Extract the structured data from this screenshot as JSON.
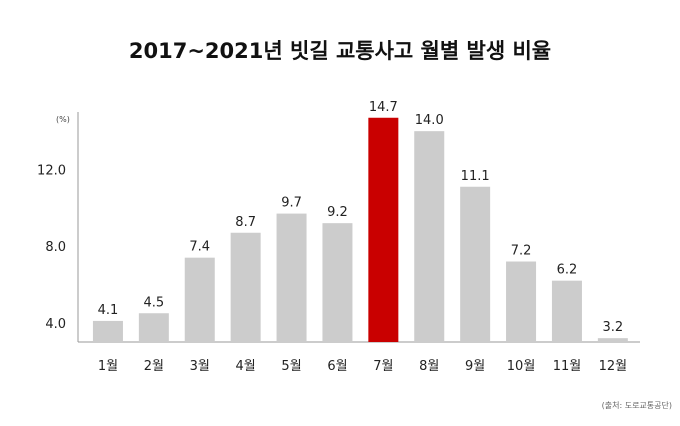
{
  "chart_data": {
    "type": "bar",
    "title": "2017~2021년 빗길 교통사고 월별 발생 비율",
    "unit": "(%)",
    "categories": [
      "1월",
      "2월",
      "3월",
      "4월",
      "5월",
      "6월",
      "7월",
      "8월",
      "9월",
      "10월",
      "11월",
      "12월"
    ],
    "values": [
      4.1,
      4.5,
      7.4,
      8.7,
      9.7,
      9.2,
      14.7,
      14.0,
      11.1,
      7.2,
      6.2,
      3.2
    ],
    "value_labels": [
      "4.1",
      "4.5",
      "7.4",
      "8.7",
      "9.7",
      "9.2",
      "14.7",
      "14.0",
      "11.1",
      "7.2",
      "6.2",
      "3.2"
    ],
    "yticks": [
      4.0,
      8.0,
      12.0
    ],
    "ytick_labels": [
      "4.0",
      "8.0",
      "12.0"
    ],
    "ylim": [
      3.0,
      15.0
    ],
    "highlight_index": 6,
    "colors": {
      "bar": "#cccccc",
      "highlight": "#c90000"
    },
    "grid": false,
    "source": "(출처: 도로교통공단)"
  }
}
